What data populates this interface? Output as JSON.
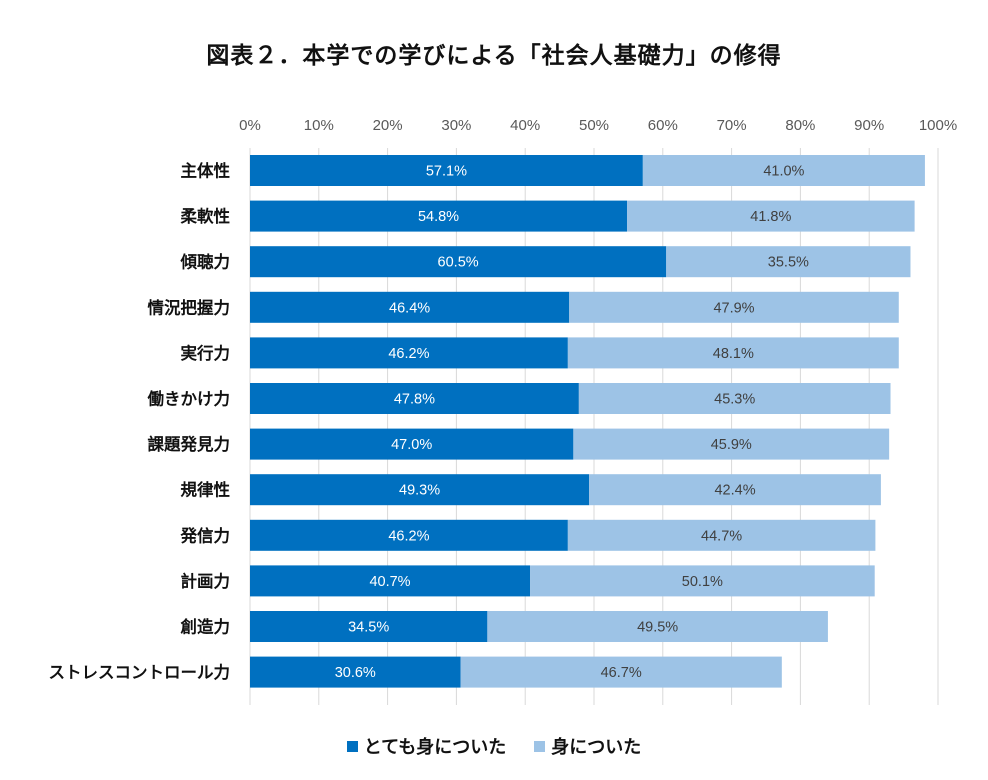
{
  "chart_data": {
    "type": "bar",
    "orientation": "horizontal",
    "stacked": true,
    "title": "図表２．本学での学びによる「社会人基礎力」の修得",
    "categories": [
      "主体性",
      "柔軟性",
      "傾聴力",
      "情況把握力",
      "実行力",
      "働きかけ力",
      "課題発見力",
      "規律性",
      "発信力",
      "計画力",
      "創造力",
      "ストレスコントロール力"
    ],
    "series": [
      {
        "name": "とても身についた",
        "color": "#0070C0",
        "label_color": "#ffffff",
        "values": [
          57.1,
          54.8,
          60.5,
          46.4,
          46.2,
          47.8,
          47.0,
          49.3,
          46.2,
          40.7,
          34.5,
          30.6
        ],
        "labels": [
          "57.1%",
          "54.8%",
          "60.5%",
          "46.4%",
          "46.2%",
          "47.8%",
          "47.0%",
          "49.3%",
          "46.2%",
          "40.7%",
          "34.5%",
          "30.6%"
        ]
      },
      {
        "name": "身についた",
        "color": "#9DC3E6",
        "label_color": "#404040",
        "values": [
          41.0,
          41.8,
          35.5,
          47.9,
          48.1,
          45.3,
          45.9,
          42.4,
          44.7,
          50.1,
          49.5,
          46.7
        ],
        "labels": [
          "41.0%",
          "41.8%",
          "35.5%",
          "47.9%",
          "48.1%",
          "45.3%",
          "45.9%",
          "42.4%",
          "44.7%",
          "50.1%",
          "49.5%",
          "46.7%"
        ]
      }
    ],
    "x_axis": {
      "min": 0,
      "max": 100,
      "step": 10,
      "position": "top",
      "tick_labels": [
        "0%",
        "10%",
        "20%",
        "30%",
        "40%",
        "50%",
        "60%",
        "70%",
        "80%",
        "90%",
        "100%"
      ],
      "grid": true
    },
    "legend": {
      "position": "bottom"
    }
  },
  "colors": {
    "grid": "#D9D9D9",
    "category_text": "#111111",
    "tick_text": "#595959"
  }
}
